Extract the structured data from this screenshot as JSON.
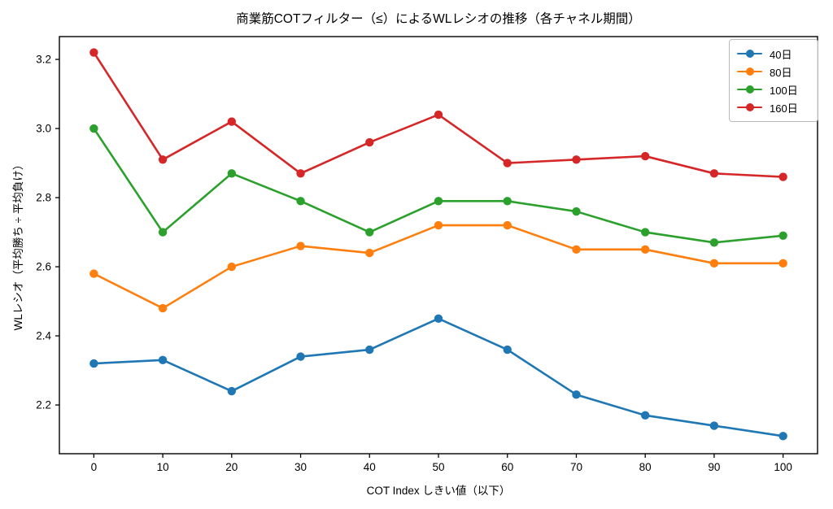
{
  "chart_data": {
    "type": "line",
    "title": "商業筋COTフィルター（≤）によるWLレシオの推移（各チャネル期間）",
    "xlabel": "COT Index しきい値（以下）",
    "ylabel": "WLレシオ（平均勝ち ÷ 平均負け）",
    "x": [
      0,
      10,
      20,
      30,
      40,
      50,
      60,
      70,
      80,
      90,
      100
    ],
    "series": [
      {
        "name": "40日",
        "color": "#1f77b4",
        "values": [
          2.32,
          2.33,
          2.24,
          2.34,
          2.36,
          2.45,
          2.36,
          2.23,
          2.17,
          2.14,
          2.11
        ]
      },
      {
        "name": "80日",
        "color": "#ff7f0e",
        "values": [
          2.58,
          2.48,
          2.6,
          2.66,
          2.64,
          2.72,
          2.72,
          2.65,
          2.65,
          2.61,
          2.61
        ]
      },
      {
        "name": "100日",
        "color": "#2ca02c",
        "values": [
          3.0,
          2.7,
          2.87,
          2.79,
          2.7,
          2.79,
          2.79,
          2.76,
          2.7,
          2.67,
          2.69
        ]
      },
      {
        "name": "160日",
        "color": "#d62728",
        "values": [
          3.22,
          2.91,
          3.02,
          2.87,
          2.96,
          3.04,
          2.9,
          2.91,
          2.92,
          2.87,
          2.86
        ]
      }
    ],
    "xticks": [
      0,
      10,
      20,
      30,
      40,
      50,
      60,
      70,
      80,
      90,
      100
    ],
    "yticks": [
      2.2,
      2.4,
      2.6,
      2.8,
      3.0,
      3.2
    ],
    "xlim": [
      -5,
      105
    ],
    "ylim": [
      2.059,
      3.266
    ],
    "grid": false,
    "legend_position": "upper right",
    "marker": "circle",
    "axis_color": "#000000",
    "background_color": "#ffffff"
  }
}
